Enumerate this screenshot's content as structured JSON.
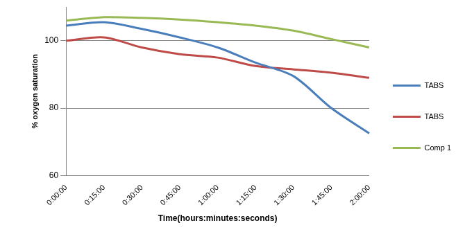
{
  "chart_data": {
    "type": "line",
    "x_label": "Time(hours:minutes:seconds)",
    "y_label": "% oxygen saturation",
    "categories": [
      "0:00:00",
      "0:15:00",
      "0:30:00",
      "0:45:00",
      "1:00:00",
      "1:15:00",
      "1:30:00",
      "1:45:00",
      "2:00:00"
    ],
    "series": [
      {
        "name": "TABS",
        "color": "#4a7ebb",
        "values": [
          104.5,
          105.5,
          103.5,
          101,
          98,
          93.5,
          89.5,
          80,
          72.5
        ]
      },
      {
        "name": "TABS",
        "color": "#be4b48",
        "values": [
          100,
          101,
          98,
          96,
          95,
          92.5,
          91.5,
          90.5,
          89
        ]
      },
      {
        "name": "Comp 1",
        "color": "#98b954",
        "values": [
          106,
          107,
          106.8,
          106.3,
          105.5,
          104.5,
          103,
          100.5,
          98
        ]
      }
    ],
    "ylim": [
      60,
      110
    ],
    "yticks": [
      60,
      80,
      100
    ],
    "grid": true,
    "legend": "right",
    "marker": "none",
    "line_style": "solid"
  }
}
